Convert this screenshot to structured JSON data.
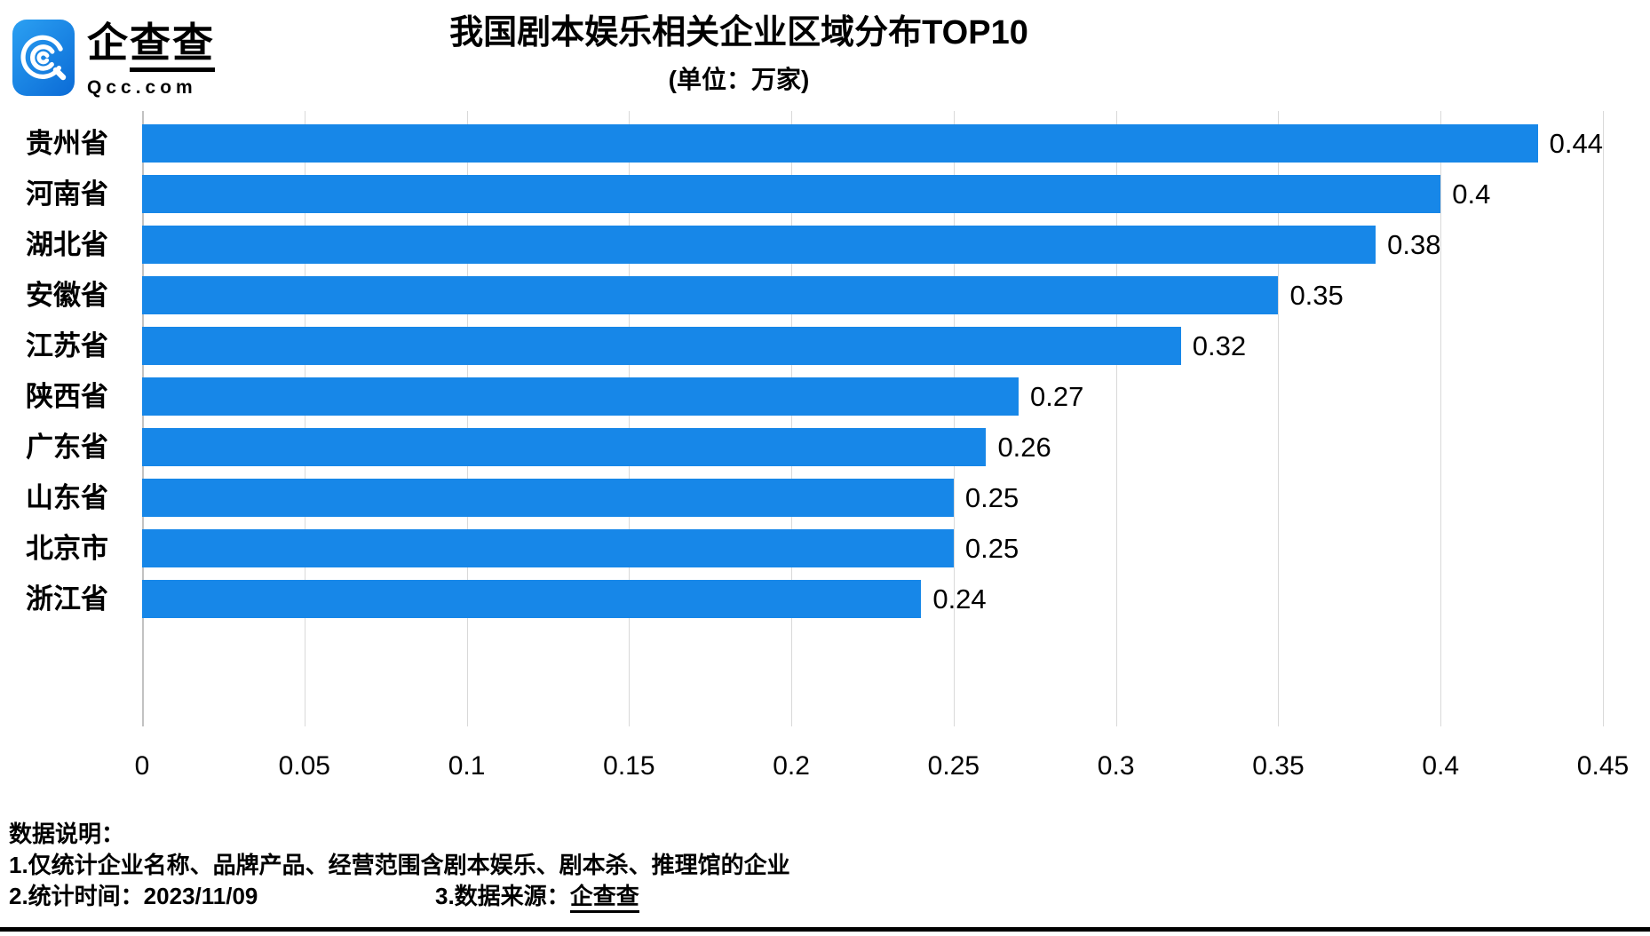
{
  "logo": {
    "brand": "企查查",
    "domain": "Qcc.com",
    "icon": "qcc-spiral-icon",
    "icon_gradient": [
      "#2ba0f2",
      "#0b6bd6"
    ]
  },
  "header": {
    "title": "我国剧本娱乐相关企业区域分布TOP10",
    "subtitle": "(单位：万家)"
  },
  "chart_data": {
    "type": "bar",
    "orientation": "horizontal",
    "title": "我国剧本娱乐相关企业区域分布TOP10",
    "unit": "万家",
    "categories": [
      "贵州省",
      "河南省",
      "湖北省",
      "安徽省",
      "江苏省",
      "陕西省",
      "广东省",
      "山东省",
      "北京市",
      "浙江省"
    ],
    "values": [
      0.44,
      0.4,
      0.38,
      0.35,
      0.32,
      0.27,
      0.26,
      0.25,
      0.25,
      0.24
    ],
    "value_labels": [
      "0.44",
      "0.4",
      "0.38",
      "0.35",
      "0.32",
      "0.27",
      "0.26",
      "0.25",
      "0.25",
      "0.24"
    ],
    "xlim": [
      0,
      0.45
    ],
    "xticks": [
      0,
      0.05,
      0.1,
      0.15,
      0.2,
      0.25,
      0.3,
      0.35,
      0.4,
      0.45
    ],
    "xtick_labels": [
      "0",
      "0.05",
      "0.1",
      "0.15",
      "0.2",
      "0.25",
      "0.3",
      "0.35",
      "0.4",
      "0.45"
    ],
    "grid": "vertical",
    "legend": "none",
    "bar_color": "#1787e8",
    "gridline_color": "#d9d9d9"
  },
  "footer": {
    "note_title": "数据说明：",
    "note1": "1.仅统计企业名称、品牌产品、经营范围含剧本娱乐、剧本杀、推理馆的企业",
    "note2": "2.统计时间：2023/11/09",
    "note3_prefix": "3.数据来源：",
    "note3_source": "企查查"
  }
}
